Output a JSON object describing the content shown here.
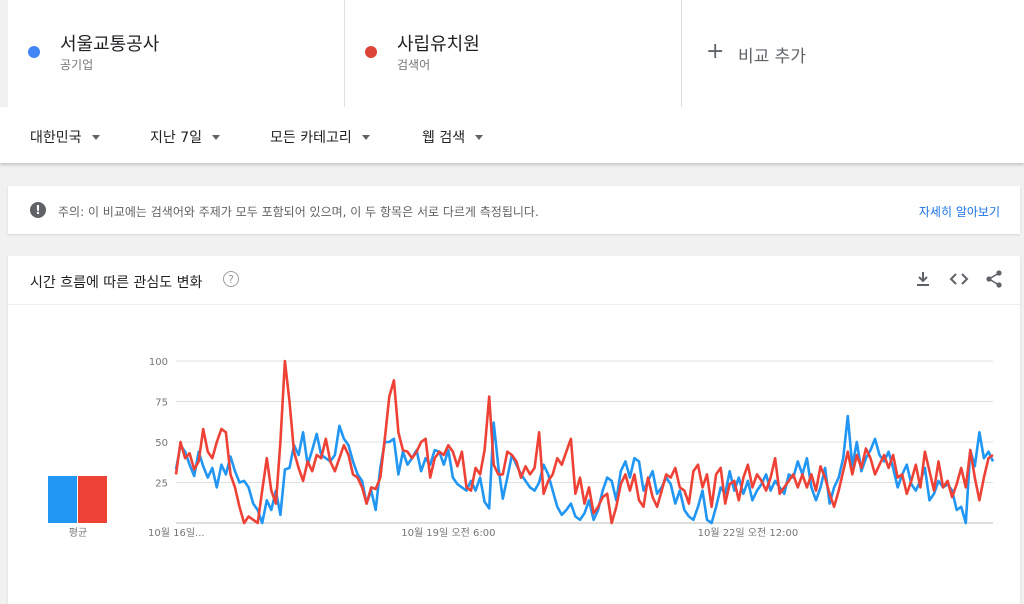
{
  "terms": [
    {
      "name": "서울교통공사",
      "type": "공기업",
      "color": "#4285f4"
    },
    {
      "name": "사립유치원",
      "type": "검색어",
      "color": "#db4437"
    }
  ],
  "add_compare": {
    "plus": "+",
    "label": "비교 추가"
  },
  "filters": {
    "region": "대한민국",
    "period": "지난 7일",
    "category": "모든 카테고리",
    "search_type": "웹 검색"
  },
  "notice": {
    "icon": "!",
    "prefix": "주의:",
    "text": " 이 비교에는 검색어와 주제가 모두 포함되어 있으며, 이 두 항목은 서로 다르게 측정됩니다.",
    "link": "자세히 알아보기"
  },
  "card": {
    "title": "시간 흐름에 따른 관심도 변화",
    "help": "?"
  },
  "chart_data": {
    "type": "line",
    "ylim": [
      0,
      100
    ],
    "yticks": [
      25,
      50,
      75,
      100
    ],
    "x_ticks": [
      {
        "label": "10월 16일...",
        "index": 0
      },
      {
        "label": "10월 19일 오전 6:00",
        "index": 60
      },
      {
        "label": "10월 22일 오전 12:00",
        "index": 126
      }
    ],
    "average": {
      "label": "평균",
      "values": [
        29,
        29
      ]
    },
    "series": [
      {
        "name": "서울교통공사",
        "color": "#2196f3",
        "values": [
          33,
          48,
          44,
          36,
          29,
          44,
          35,
          28,
          34,
          22,
          36,
          30,
          41,
          32,
          25,
          26,
          22,
          12,
          8,
          0,
          14,
          8,
          20,
          5,
          33,
          34,
          48,
          42,
          56,
          36,
          45,
          55,
          42,
          40,
          38,
          42,
          60,
          52,
          48,
          38,
          30,
          26,
          12,
          20,
          8,
          34,
          50,
          50,
          52,
          30,
          44,
          36,
          40,
          45,
          32,
          40,
          36,
          45,
          44,
          36,
          45,
          28,
          24,
          22,
          20,
          26,
          20,
          28,
          13,
          9,
          62,
          35,
          15,
          28,
          42,
          36,
          30,
          26,
          22,
          20,
          25,
          36,
          30,
          20,
          10,
          5,
          8,
          12,
          4,
          2,
          6,
          14,
          2,
          8,
          20,
          28,
          26,
          14,
          32,
          38,
          28,
          40,
          38,
          20,
          26,
          32,
          18,
          22,
          28,
          24,
          12,
          20,
          8,
          4,
          2,
          10,
          20,
          2,
          0,
          10,
          22,
          18,
          32,
          20,
          28,
          18,
          26,
          14,
          20,
          24,
          30,
          20,
          26,
          22,
          18,
          30,
          28,
          38,
          30,
          40,
          22,
          14,
          22,
          34,
          12,
          22,
          28,
          40,
          66,
          35,
          50,
          32,
          40,
          45,
          52,
          42,
          38,
          44,
          34,
          22,
          30,
          36,
          24,
          20,
          26,
          34,
          14,
          18,
          26,
          22,
          24,
          20,
          8,
          10,
          0,
          45,
          35,
          56,
          40,
          44,
          38
        ]
      },
      {
        "name": "사립유치원",
        "color": "#ef4236",
        "values": [
          30,
          50,
          40,
          43,
          33,
          38,
          58,
          44,
          40,
          50,
          58,
          56,
          30,
          22,
          10,
          0,
          4,
          2,
          0,
          20,
          40,
          20,
          12,
          50,
          100,
          75,
          44,
          34,
          26,
          38,
          32,
          42,
          40,
          52,
          38,
          32,
          40,
          48,
          42,
          30,
          28,
          22,
          12,
          22,
          21,
          28,
          52,
          78,
          88,
          56,
          45,
          44,
          40,
          44,
          50,
          52,
          28,
          40,
          44,
          42,
          48,
          44,
          35,
          44,
          22,
          20,
          34,
          30,
          45,
          78,
          36,
          30,
          30,
          44,
          42,
          38,
          28,
          35,
          30,
          34,
          56,
          18,
          26,
          30,
          40,
          36,
          44,
          52,
          18,
          28,
          12,
          22,
          6,
          10,
          16,
          18,
          0,
          10,
          24,
          30,
          20,
          30,
          14,
          10,
          28,
          16,
          10,
          20,
          30,
          28,
          34,
          22,
          20,
          12,
          32,
          36,
          22,
          30,
          10,
          30,
          34,
          12,
          24,
          26,
          14,
          28,
          36,
          22,
          30,
          26,
          20,
          28,
          40,
          18,
          22,
          26,
          30,
          22,
          30,
          22,
          30,
          20,
          35,
          28,
          18,
          10,
          20,
          32,
          44,
          30,
          42,
          34,
          46,
          40,
          30,
          36,
          42,
          34,
          42,
          28,
          30,
          18,
          26,
          36,
          22,
          44,
          32,
          20,
          38,
          22,
          26,
          16,
          24,
          34,
          22,
          45,
          28,
          14,
          28,
          40,
          42
        ]
      }
    ]
  },
  "colors": {
    "grid": "#e0e0e0",
    "axis_text": "#757575"
  }
}
